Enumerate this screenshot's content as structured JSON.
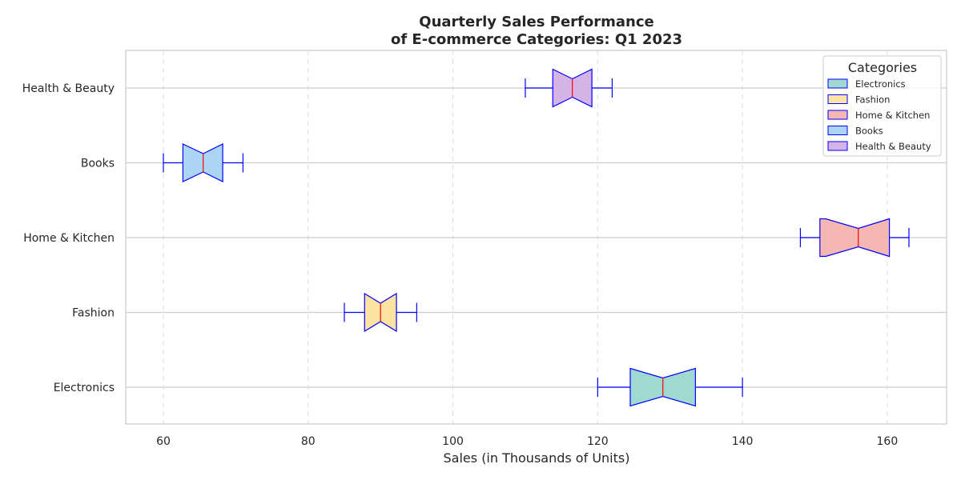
{
  "chart_data": {
    "type": "boxplot",
    "orientation": "horizontal",
    "notched": true,
    "title_line1": "Quarterly Sales Performance",
    "title_line2": "of E-commerce Categories: Q1 2023",
    "xlabel": "Sales (in Thousands of Units)",
    "ylabel": "",
    "xlim": [
      54.8,
      168.2
    ],
    "xticks": [
      60,
      80,
      100,
      120,
      140,
      160
    ],
    "x_grid": "dashed",
    "y_grid": "solid",
    "legend_title": "Categories",
    "legend_position": "top-right",
    "series": [
      {
        "name": "Electronics",
        "min": 120,
        "q1": 124.5,
        "median": 129,
        "q3": 133.5,
        "max": 140,
        "notch_low": 124.5,
        "notch_high": 133.5,
        "color": "#a0d9d0"
      },
      {
        "name": "Fashion",
        "min": 85,
        "q1": 87.8,
        "median": 90,
        "q3": 92.2,
        "max": 95,
        "notch_low": 87.8,
        "notch_high": 92.2,
        "color": "#fbe3a1"
      },
      {
        "name": "Home & Kitchen",
        "min": 148,
        "q1": 150.7,
        "median": 156,
        "q3": 160.3,
        "max": 163,
        "notch_low": 151.5,
        "notch_high": 160.3,
        "color": "#f4b7b2"
      },
      {
        "name": "Books",
        "min": 60,
        "q1": 62.7,
        "median": 65.5,
        "q3": 68.2,
        "max": 71,
        "notch_low": 62.7,
        "notch_high": 68.2,
        "color": "#abd5f2"
      },
      {
        "name": "Health & Beauty",
        "min": 110,
        "q1": 113.8,
        "median": 116.5,
        "q3": 119.2,
        "max": 122,
        "notch_low": 113.8,
        "notch_high": 119.2,
        "color": "#d4b3e6"
      }
    ],
    "box_edge_color": "#0000ff",
    "median_color": "#ff0000"
  }
}
